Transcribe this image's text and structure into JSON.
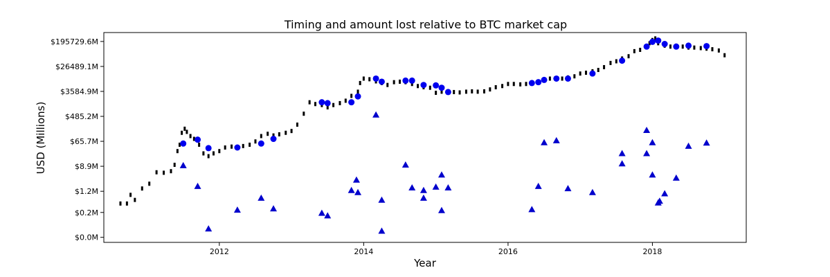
{
  "chart_data": {
    "type": "scatter",
    "title": "Timing and amount lost relative to BTC market cap",
    "xlabel": "Year",
    "ylabel": "USD (Millions)",
    "yscale": "log",
    "xlim": [
      2010.4,
      2019.3
    ],
    "ylim": [
      0.02,
      400000
    ],
    "xticks": [
      {
        "value": 2012,
        "label": "2012"
      },
      {
        "value": 2014,
        "label": "2014"
      },
      {
        "value": 2016,
        "label": "2016"
      },
      {
        "value": 2018,
        "label": "2018"
      }
    ],
    "yticks": [
      {
        "value": 0.03,
        "label": "$0.0M"
      },
      {
        "value": 0.22,
        "label": "$0.2M"
      },
      {
        "value": 1.2,
        "label": "$1.2M"
      },
      {
        "value": 8.9,
        "label": "$8.9M"
      },
      {
        "value": 65.7,
        "label": "$65.7M"
      },
      {
        "value": 485.2,
        "label": "$485.2M"
      },
      {
        "value": 3584.9,
        "label": "$3584.9M"
      },
      {
        "value": 26489.1,
        "label": "$26489.1M"
      },
      {
        "value": 195729.6,
        "label": "$195729.6M"
      }
    ],
    "grid": false,
    "colors": {
      "market_cap": "#000000",
      "market_cap_at_loss": "#0000ee",
      "loss": "#0000cc"
    },
    "series": [
      {
        "marker": "dash",
        "x": [
          2010.63,
          2010.72,
          2010.77,
          2010.83,
          2010.93,
          2011.03,
          2011.13,
          2011.23,
          2011.33,
          2011.38,
          2011.42,
          2011.45,
          2011.48,
          2011.52,
          2011.55,
          2011.6,
          2011.65,
          2011.72,
          2011.78,
          2011.85,
          2011.92,
          2012.0,
          2012.08,
          2012.17,
          2012.25,
          2012.33,
          2012.42,
          2012.5,
          2012.58,
          2012.67,
          2012.75,
          2012.83,
          2012.92,
          2013.0,
          2013.08,
          2013.17,
          2013.25,
          2013.33,
          2013.42,
          2013.5,
          2013.58,
          2013.67,
          2013.75,
          2013.83,
          2013.92,
          2013.95,
          2014.0,
          2014.08,
          2014.17,
          2014.25,
          2014.33,
          2014.42,
          2014.5,
          2014.58,
          2014.67,
          2014.75,
          2014.83,
          2014.92,
          2015.0,
          2015.08,
          2015.17,
          2015.25,
          2015.33,
          2015.42,
          2015.5,
          2015.58,
          2015.67,
          2015.75,
          2015.83,
          2015.92,
          2016.0,
          2016.08,
          2016.17,
          2016.25,
          2016.33,
          2016.42,
          2016.5,
          2016.58,
          2016.67,
          2016.75,
          2016.83,
          2016.92,
          2017.0,
          2017.08,
          2017.17,
          2017.25,
          2017.33,
          2017.42,
          2017.5,
          2017.58,
          2017.67,
          2017.75,
          2017.83,
          2017.92,
          2017.96,
          2018.0,
          2018.04,
          2018.08,
          2018.17,
          2018.25,
          2018.33,
          2018.42,
          2018.5,
          2018.58,
          2018.67,
          2018.75,
          2018.83,
          2018.92,
          2019.0
        ],
        "y": [
          0.45,
          0.45,
          0.9,
          0.6,
          1.5,
          2.2,
          5.5,
          5.3,
          6.0,
          10.0,
          30.0,
          50.0,
          130.0,
          180.0,
          140.0,
          100.0,
          80.0,
          50.0,
          25.0,
          20.0,
          25.0,
          30.0,
          40.0,
          43.0,
          40.0,
          45.0,
          50.0,
          65.0,
          100.0,
          120.0,
          105.0,
          115.0,
          130.0,
          150.0,
          250.0,
          600.0,
          1500.0,
          1300.0,
          1200.0,
          1000.0,
          1200.0,
          1400.0,
          1700.0,
          2500.0,
          3500.0,
          7000.0,
          10000.0,
          9500.0,
          8000.0,
          7000.0,
          6000.0,
          7500.0,
          7800.0,
          7500.0,
          6500.0,
          5500.0,
          5000.0,
          4800.0,
          3200.0,
          3500.0,
          3300.0,
          3400.0,
          3300.0,
          3500.0,
          3600.0,
          3500.0,
          3600.0,
          4200.0,
          5000.0,
          5500.0,
          6500.0,
          6500.0,
          6300.0,
          6500.0,
          7000.0,
          7300.0,
          9000.0,
          10000.0,
          9500.0,
          10000.0,
          11000.0,
          12000.0,
          15000.0,
          16000.0,
          18000.0,
          20000.0,
          25000.0,
          35000.0,
          40000.0,
          50000.0,
          60000.0,
          90000.0,
          100000.0,
          130000.0,
          170000.0,
          220000.0,
          250000.0,
          170000.0,
          140000.0,
          130000.0,
          140000.0,
          130000.0,
          120000.0,
          120000.0,
          115000.0,
          110000.0,
          105000.0,
          95000.0,
          65000.0
        ]
      },
      {
        "marker": "circle",
        "x": [
          2011.5,
          2011.7,
          2011.85,
          2012.25,
          2012.58,
          2012.75,
          2013.42,
          2013.5,
          2013.83,
          2013.92,
          2014.17,
          2014.25,
          2014.58,
          2014.67,
          2014.83,
          2015.0,
          2015.08,
          2015.17,
          2016.33,
          2016.42,
          2016.5,
          2016.67,
          2016.83,
          2017.17,
          2017.58,
          2017.92,
          2018.0,
          2018.08,
          2018.17,
          2018.33,
          2018.5,
          2018.75
        ],
        "y": [
          55.0,
          75.0,
          38.0,
          40.0,
          55.0,
          80.0,
          1500.0,
          1400.0,
          1500.0,
          2400.0,
          10000.0,
          7800.0,
          8500.0,
          8500.0,
          6000.0,
          5800.0,
          4800.0,
          3400.0,
          7000.0,
          7500.0,
          9000.0,
          10000.0,
          10000.0,
          15000.0,
          42000.0,
          130000.0,
          190000.0,
          210000.0,
          160000.0,
          130000.0,
          140000.0,
          135000.0
        ]
      },
      {
        "marker": "triangle",
        "x": [
          2011.5,
          2011.7,
          2011.85,
          2012.25,
          2012.58,
          2012.75,
          2013.42,
          2013.5,
          2013.83,
          2013.9,
          2013.92,
          2014.17,
          2014.25,
          2014.25,
          2014.58,
          2014.67,
          2014.83,
          2014.83,
          2015.0,
          2015.08,
          2015.08,
          2015.17,
          2016.33,
          2016.42,
          2016.5,
          2016.67,
          2016.83,
          2017.17,
          2017.58,
          2017.58,
          2017.92,
          2017.92,
          2018.0,
          2018.0,
          2018.08,
          2018.1,
          2018.17,
          2018.33,
          2018.5,
          2018.75
        ],
        "y": [
          9.5,
          1.8,
          0.06,
          0.27,
          0.7,
          0.3,
          0.21,
          0.17,
          1.3,
          3.0,
          1.1,
          550.0,
          0.6,
          0.05,
          10.0,
          1.6,
          0.7,
          1.3,
          1.7,
          0.26,
          4.5,
          1.6,
          0.28,
          1.8,
          60.0,
          70.0,
          1.5,
          1.1,
          25.0,
          11.0,
          160.0,
          25.0,
          60.0,
          4.5,
          0.48,
          0.55,
          1.0,
          3.5,
          45.0,
          58.0
        ]
      }
    ]
  }
}
